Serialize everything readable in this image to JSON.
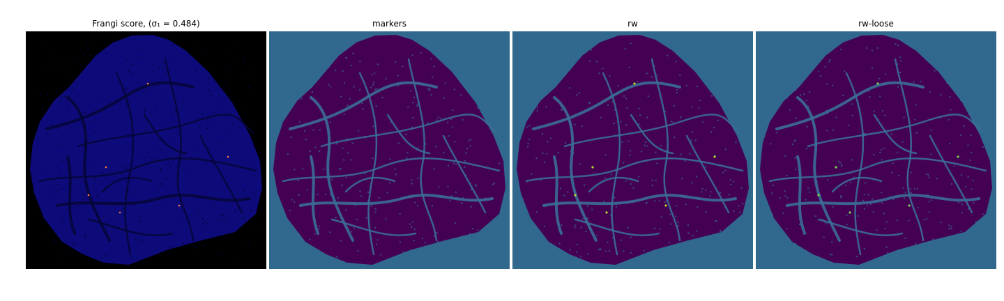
{
  "figure": {
    "panels": [
      {
        "id": "frangi",
        "title": "Frangi score, (σ₁ = 0.484)",
        "background": "#000000",
        "blob_fill": "#0d0a7a",
        "vessel_color": "#05053a",
        "highlight_color": "#ff7a3a"
      },
      {
        "id": "markers",
        "title": "markers",
        "background": "#31688e",
        "blob_fill": "#440154",
        "vessel_color": "#3b6e95",
        "highlight_color": ""
      },
      {
        "id": "rw",
        "title": "rw",
        "background": "#31688e",
        "blob_fill": "#440154",
        "vessel_color": "#3b6e95",
        "highlight_color": "#b5de2b"
      },
      {
        "id": "rw-loose",
        "title": "rw-loose",
        "background": "#31688e",
        "blob_fill": "#440154",
        "vessel_color": "#3b6e95",
        "highlight_color": "#7ad151"
      }
    ]
  }
}
